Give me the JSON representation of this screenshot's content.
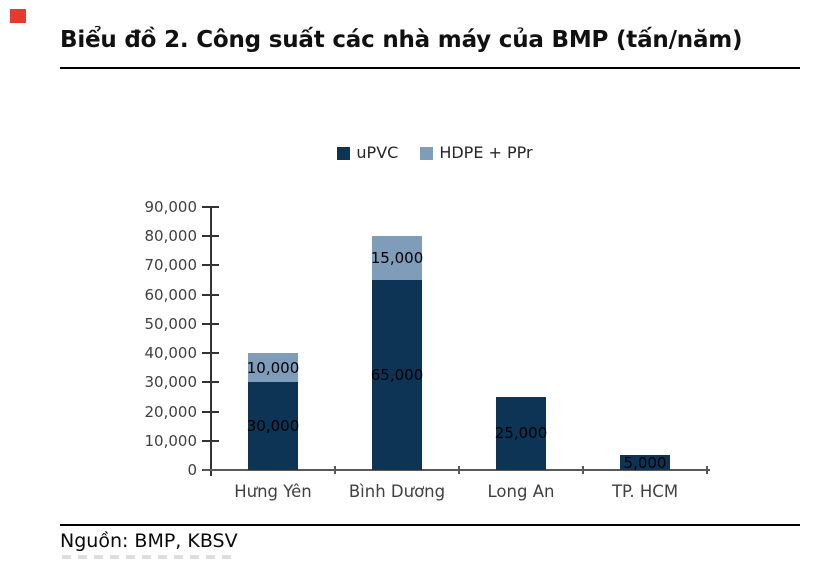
{
  "header": {
    "title": "Biểu đồ 2. Công suất các nhà máy của BMP (tấn/năm)"
  },
  "footer": {
    "source": "Nguồn: BMP, KBSV"
  },
  "decor": {
    "red_square_color": "#e8392f"
  },
  "chart_data": {
    "type": "bar",
    "stacked": true,
    "title": "Biểu đồ 2. Công suất các nhà máy của BMP (tấn/năm)",
    "categories": [
      "Hưng Yên",
      "Bình Dương",
      "Long An",
      "TP. HCM"
    ],
    "series": [
      {
        "name": "uPVC",
        "color": "#0d3355",
        "values": [
          30000,
          65000,
          25000,
          5000
        ],
        "labels": [
          "30,000",
          "65,000",
          "25,000",
          "5,000"
        ]
      },
      {
        "name": "HDPE + PPr",
        "color": "#7f9cba",
        "values": [
          10000,
          15000,
          0,
          0
        ],
        "labels": [
          "10,000",
          "15,000",
          "",
          ""
        ]
      }
    ],
    "totals": [
      40000,
      80000,
      25000,
      5000
    ],
    "ylim": [
      0,
      90000
    ],
    "ytick_step": 10000,
    "yticks": [
      "0",
      "10,000",
      "20,000",
      "30,000",
      "40,000",
      "50,000",
      "60,000",
      "70,000",
      "80,000",
      "90,000"
    ],
    "grid": false,
    "legend_position": "top-center",
    "xlabel": "",
    "ylabel": ""
  }
}
